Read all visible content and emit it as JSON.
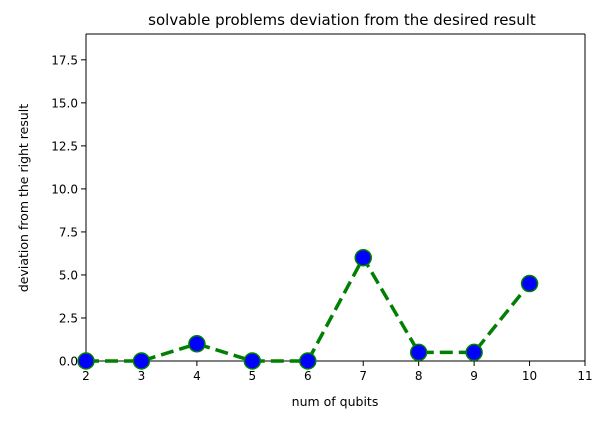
{
  "chart_data": {
    "type": "line",
    "title": "solvable problems deviation from the desired result",
    "xlabel": "num of qubits",
    "ylabel": "deviation from the right result",
    "xlim": [
      2,
      11
    ],
    "ylim": [
      0,
      19
    ],
    "x_ticks": [
      "2",
      "3",
      "4",
      "5",
      "6",
      "7",
      "8",
      "9",
      "10",
      "11"
    ],
    "y_ticks": [
      "0.0",
      "2.5",
      "5.0",
      "7.5",
      "10.0",
      "12.5",
      "15.0",
      "17.5"
    ],
    "grid": false,
    "series": [
      {
        "x": [
          2,
          3,
          4,
          5,
          6,
          7,
          8,
          9,
          10
        ],
        "values": [
          0,
          0,
          1.0,
          0,
          0,
          6.0,
          0.5,
          0.5,
          4.5
        ],
        "line_color": "#008000",
        "line_style": "dashed",
        "marker": "circle",
        "marker_fill": "#0000ff",
        "marker_edge": "#008000"
      }
    ]
  }
}
